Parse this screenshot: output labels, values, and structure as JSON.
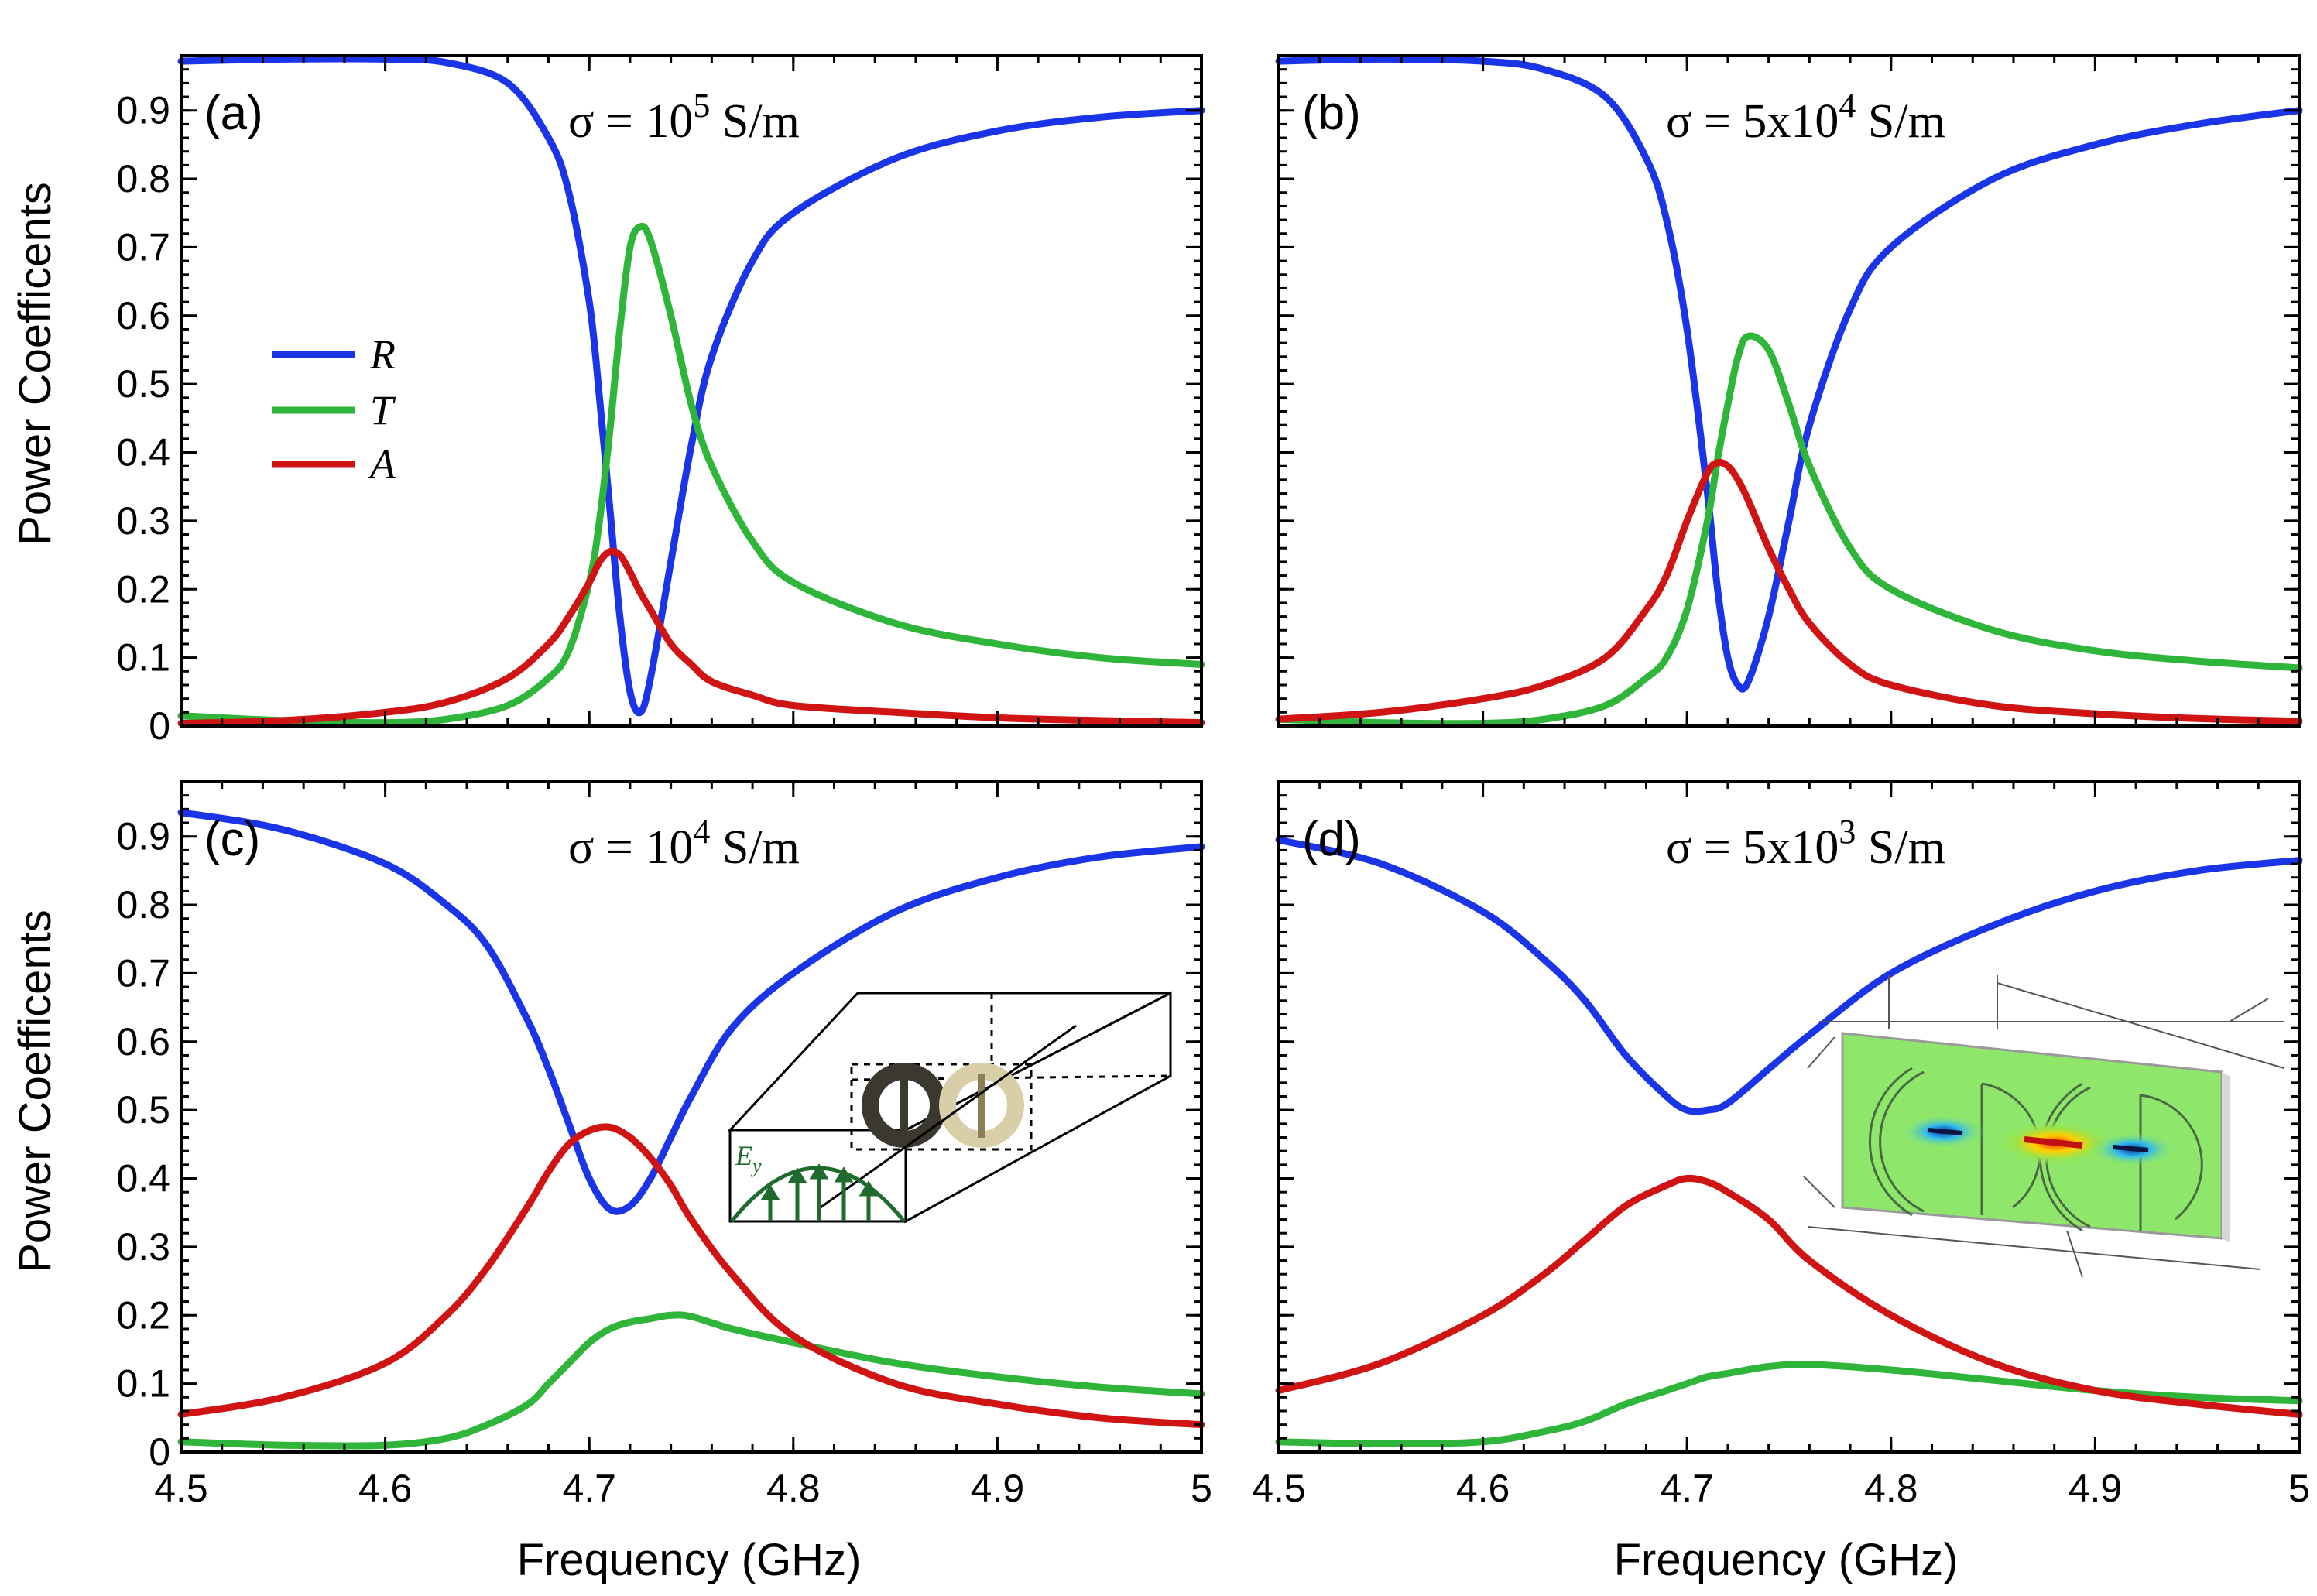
{
  "colors": {
    "R": "#1a35e8",
    "T": "#2fb53a",
    "A": "#d01414",
    "inset_green": "#1f6b2e"
  },
  "axes": {
    "xlabel": "Frequency (GHz)",
    "ylabel": "Power Coefficents",
    "xlim": [
      4.5,
      5.0
    ],
    "ylim": [
      0.0,
      0.98
    ],
    "xticks": [
      "4.5",
      "4.6",
      "4.7",
      "4.8",
      "4.9",
      "5"
    ],
    "yticks": [
      "0",
      "0.1",
      "0.2",
      "0.3",
      "0.4",
      "0.5",
      "0.6",
      "0.7",
      "0.8",
      "0.9"
    ]
  },
  "legend": {
    "entries": [
      "R",
      "T",
      "A"
    ]
  },
  "inset_c": {
    "field_label": "E",
    "field_subscript": "y"
  },
  "chart_data": [
    {
      "type": "line",
      "panel": "(a)",
      "sigma": {
        "prefix": "σ = 10",
        "exp": "5",
        "unit": " S/m"
      },
      "x": [
        4.5,
        4.55,
        4.6,
        4.63,
        4.66,
        4.68,
        4.69,
        4.7,
        4.705,
        4.71,
        4.715,
        4.72,
        4.725,
        4.73,
        4.74,
        4.75,
        4.76,
        4.78,
        4.8,
        4.85,
        4.9,
        4.95,
        5.0
      ],
      "series": [
        {
          "name": "R",
          "values": [
            0.972,
            0.975,
            0.975,
            0.97,
            0.94,
            0.86,
            0.78,
            0.62,
            0.48,
            0.32,
            0.16,
            0.05,
            0.02,
            0.07,
            0.24,
            0.41,
            0.54,
            0.68,
            0.75,
            0.83,
            0.87,
            0.89,
            0.9
          ]
        },
        {
          "name": "T",
          "values": [
            0.015,
            0.008,
            0.005,
            0.01,
            0.03,
            0.07,
            0.11,
            0.21,
            0.3,
            0.43,
            0.58,
            0.7,
            0.73,
            0.71,
            0.6,
            0.47,
            0.38,
            0.27,
            0.21,
            0.15,
            0.12,
            0.1,
            0.09
          ]
        },
        {
          "name": "A",
          "values": [
            0.004,
            0.008,
            0.02,
            0.035,
            0.07,
            0.12,
            0.16,
            0.21,
            0.24,
            0.255,
            0.25,
            0.225,
            0.195,
            0.17,
            0.12,
            0.09,
            0.065,
            0.045,
            0.03,
            0.02,
            0.012,
            0.008,
            0.005
          ]
        }
      ]
    },
    {
      "type": "line",
      "panel": "(b)",
      "sigma": {
        "prefix": "σ = 5x10",
        "exp": "4",
        "unit": " S/m"
      },
      "x": [
        4.5,
        4.55,
        4.6,
        4.63,
        4.66,
        4.68,
        4.69,
        4.7,
        4.71,
        4.715,
        4.72,
        4.725,
        4.73,
        4.74,
        4.75,
        4.76,
        4.78,
        4.8,
        4.85,
        4.9,
        4.95,
        5.0
      ],
      "series": [
        {
          "name": "R",
          "values": [
            0.972,
            0.975,
            0.972,
            0.96,
            0.92,
            0.83,
            0.74,
            0.58,
            0.34,
            0.2,
            0.1,
            0.06,
            0.065,
            0.16,
            0.3,
            0.44,
            0.61,
            0.7,
            0.8,
            0.85,
            0.88,
            0.9
          ]
        },
        {
          "name": "T",
          "values": [
            0.01,
            0.005,
            0.004,
            0.01,
            0.03,
            0.07,
            0.1,
            0.17,
            0.3,
            0.39,
            0.47,
            0.54,
            0.57,
            0.55,
            0.47,
            0.38,
            0.26,
            0.2,
            0.14,
            0.11,
            0.095,
            0.085
          ]
        },
        {
          "name": "A",
          "values": [
            0.01,
            0.02,
            0.04,
            0.06,
            0.1,
            0.17,
            0.22,
            0.3,
            0.37,
            0.385,
            0.38,
            0.36,
            0.33,
            0.26,
            0.2,
            0.15,
            0.09,
            0.06,
            0.03,
            0.018,
            0.011,
            0.007
          ]
        }
      ]
    },
    {
      "type": "line",
      "panel": "(c)",
      "sigma": {
        "prefix": "σ = 10",
        "exp": "4",
        "unit": " S/m"
      },
      "x": [
        4.5,
        4.55,
        4.6,
        4.63,
        4.65,
        4.67,
        4.68,
        4.69,
        4.7,
        4.71,
        4.72,
        4.73,
        4.74,
        4.75,
        4.77,
        4.8,
        4.85,
        4.9,
        4.95,
        5.0
      ],
      "series": [
        {
          "name": "R",
          "values": [
            0.935,
            0.91,
            0.86,
            0.8,
            0.74,
            0.63,
            0.56,
            0.48,
            0.4,
            0.355,
            0.36,
            0.4,
            0.46,
            0.52,
            0.62,
            0.7,
            0.79,
            0.84,
            0.87,
            0.885
          ]
        },
        {
          "name": "T",
          "values": [
            0.015,
            0.01,
            0.01,
            0.02,
            0.04,
            0.07,
            0.1,
            0.13,
            0.16,
            0.18,
            0.19,
            0.195,
            0.2,
            0.198,
            0.18,
            0.16,
            0.13,
            0.11,
            0.095,
            0.085
          ]
        },
        {
          "name": "A",
          "values": [
            0.055,
            0.08,
            0.13,
            0.2,
            0.27,
            0.36,
            0.41,
            0.45,
            0.47,
            0.475,
            0.46,
            0.43,
            0.39,
            0.34,
            0.26,
            0.17,
            0.1,
            0.07,
            0.05,
            0.04
          ]
        }
      ]
    },
    {
      "type": "line",
      "panel": "(d)",
      "sigma": {
        "prefix": "σ = 5x10",
        "exp": "3",
        "unit": " S/m"
      },
      "x": [
        4.5,
        4.55,
        4.6,
        4.63,
        4.65,
        4.67,
        4.69,
        4.7,
        4.71,
        4.72,
        4.74,
        4.76,
        4.8,
        4.85,
        4.9,
        4.95,
        5.0
      ],
      "series": [
        {
          "name": "R",
          "values": [
            0.895,
            0.86,
            0.79,
            0.72,
            0.66,
            0.58,
            0.52,
            0.5,
            0.5,
            0.51,
            0.56,
            0.61,
            0.7,
            0.77,
            0.82,
            0.85,
            0.865
          ]
        },
        {
          "name": "T",
          "values": [
            0.015,
            0.012,
            0.015,
            0.03,
            0.045,
            0.07,
            0.09,
            0.1,
            0.11,
            0.115,
            0.125,
            0.128,
            0.12,
            0.105,
            0.09,
            0.08,
            0.075
          ]
        },
        {
          "name": "A",
          "values": [
            0.09,
            0.13,
            0.2,
            0.26,
            0.31,
            0.36,
            0.39,
            0.4,
            0.395,
            0.38,
            0.34,
            0.28,
            0.2,
            0.13,
            0.09,
            0.07,
            0.055
          ]
        }
      ]
    }
  ]
}
